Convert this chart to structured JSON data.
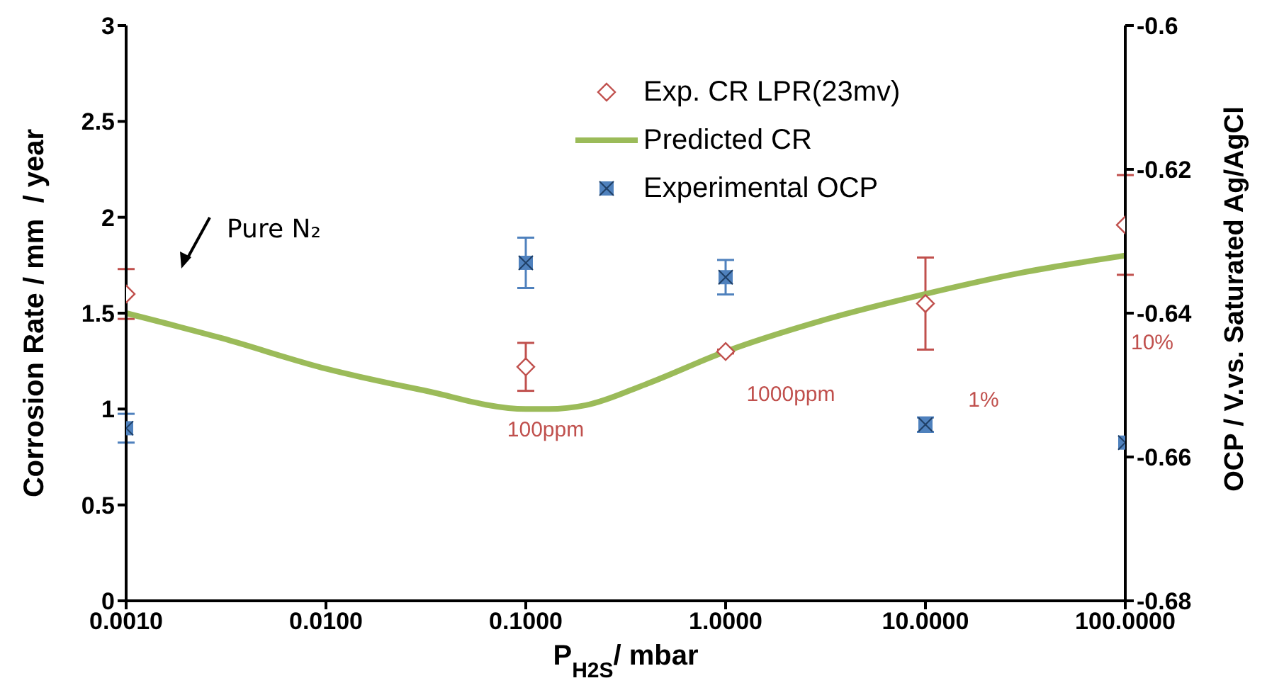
{
  "chart_data": {
    "type": "scatter",
    "xlabel": "P$_{H2S}$/ mbar",
    "ylabel": "Corrosion Rate / mm  / year",
    "y2label": "OCP / V.vs. Saturated Ag/AgCl",
    "log": "x",
    "xlim": [
      0.001,
      100
    ],
    "xticks": [
      {
        "value": 0.001,
        "label": "0.0010"
      },
      {
        "value": 0.01,
        "label": "0.0100"
      },
      {
        "value": 0.1,
        "label": "0.1000"
      },
      {
        "value": 1,
        "label": "1.0000"
      },
      {
        "value": 10,
        "label": "10.0000"
      },
      {
        "value": 100,
        "label": "100.0000"
      }
    ],
    "ylim": [
      0,
      3
    ],
    "yticks": [
      0,
      0.5,
      1,
      1.5,
      2,
      2.5,
      3
    ],
    "y2lim": [
      -0.68,
      -0.6
    ],
    "y2ticks": [
      -0.68,
      -0.66,
      -0.64,
      -0.62,
      -0.6
    ],
    "legend": "top right",
    "series": [
      {
        "name": "Exp. CR LPR(23mv)",
        "marker": "diamond",
        "color": "#c0504d",
        "x": [
          0.001,
          0.1,
          1,
          10,
          100
        ],
        "values": [
          1.6,
          1.22,
          1.3,
          1.55,
          1.96
        ],
        "errors": [
          0.13,
          0.125,
          0.01,
          0.24,
          0.26
        ]
      },
      {
        "name": "Predicted CR",
        "type": "line",
        "marker": "none",
        "color": "#9bbb59",
        "x": [
          0.001,
          0.003,
          0.01,
          0.03,
          0.1,
          0.13,
          0.2,
          0.4,
          1,
          3,
          10,
          30,
          100
        ],
        "values": [
          1.5,
          1.37,
          1.21,
          1.1,
          1.0,
          1.0,
          1.02,
          1.13,
          1.3,
          1.46,
          1.6,
          1.71,
          1.8
        ]
      },
      {
        "name": "Experimental OCP",
        "marker": "square",
        "axis": "y2",
        "color": "#4f81bd",
        "x": [
          0.001,
          0.1,
          1,
          10,
          100
        ],
        "values": [
          -0.656,
          -0.633,
          -0.635,
          -0.6555,
          -0.658
        ],
        "errors": [
          0.002,
          0.0035,
          0.0024,
          0.001,
          null
        ]
      }
    ],
    "annotations": [
      "Pure N₂",
      "100ppm",
      "1000ppm",
      "1%",
      "10%"
    ]
  }
}
